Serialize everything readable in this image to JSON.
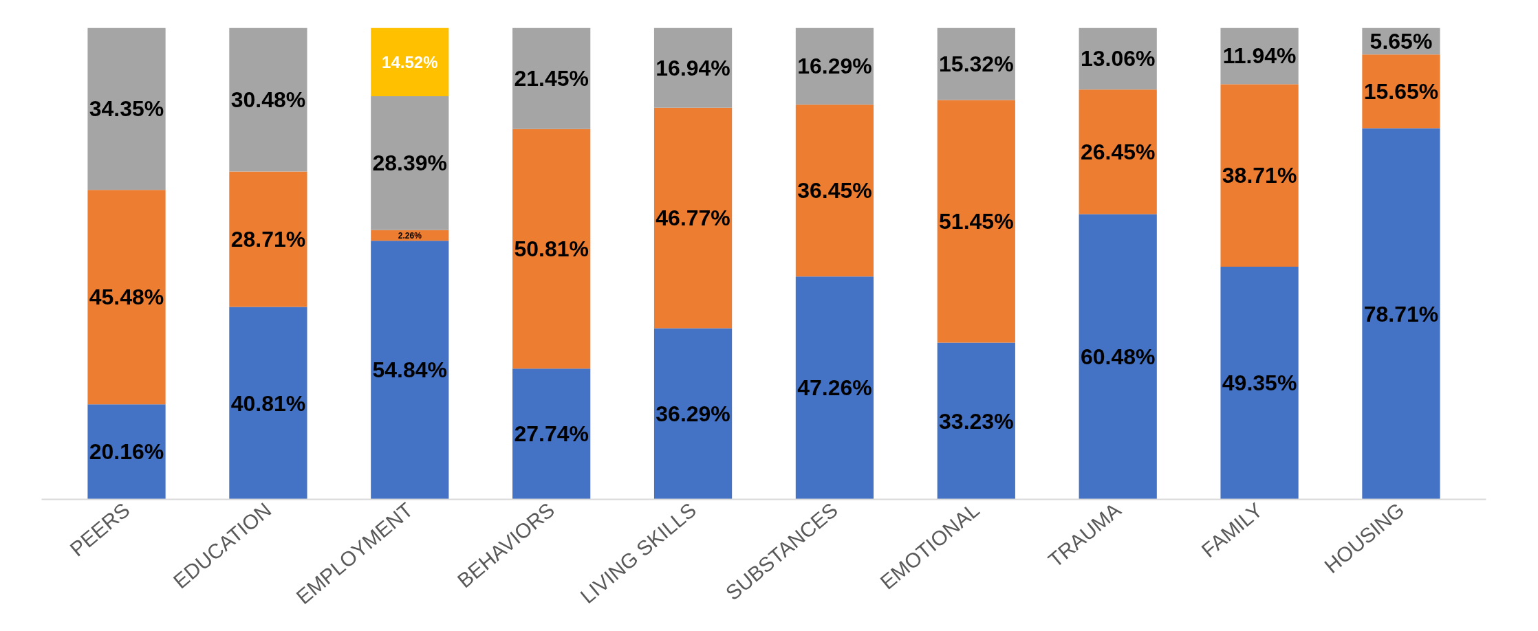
{
  "chart_data": {
    "type": "bar",
    "stacked": true,
    "categories": [
      "PEERS",
      "EDUCATION",
      "EMPLOYMENT",
      "BEHAVIORS",
      "LIVING SKILLS",
      "SUBSTANCES",
      "EMOTIONAL",
      "TRAUMA",
      "FAMILY",
      "HOUSING"
    ],
    "series": [
      {
        "color": "#4472c4",
        "values": [
          20.16,
          40.81,
          54.84,
          27.74,
          36.29,
          47.26,
          33.23,
          60.48,
          49.35,
          78.71
        ],
        "value_labels": [
          "20.16%",
          "40.81%",
          "54.84%",
          "27.74%",
          "36.29%",
          "47.26%",
          "33.23%",
          "60.48%",
          "49.35%",
          "78.71%"
        ]
      },
      {
        "color": "#ed7d31",
        "values": [
          45.48,
          28.71,
          2.26,
          50.81,
          46.77,
          36.45,
          51.45,
          26.45,
          38.71,
          15.65
        ],
        "value_labels": [
          "45.48%",
          "28.71%",
          "2.26%",
          "50.81%",
          "46.77%",
          "36.45%",
          "51.45%",
          "26.45%",
          "38.71%",
          "15.65%"
        ]
      },
      {
        "color": "#a5a5a5",
        "values": [
          34.35,
          30.48,
          28.39,
          21.45,
          16.94,
          16.29,
          15.32,
          13.06,
          11.94,
          5.65
        ],
        "value_labels": [
          "34.35%",
          "30.48%",
          "28.39%",
          "21.45%",
          "16.94%",
          "16.29%",
          "15.32%",
          "13.06%",
          "11.94%",
          "5.65%"
        ]
      },
      {
        "color": "#ffc000",
        "values": [
          null,
          null,
          14.52,
          null,
          null,
          null,
          null,
          null,
          null,
          null
        ],
        "value_labels": [
          null,
          null,
          "14.52%",
          null,
          null,
          null,
          null,
          null,
          null,
          null
        ]
      }
    ],
    "ylim": [
      0,
      100
    ],
    "tick_labels": "x",
    "grid": false
  }
}
